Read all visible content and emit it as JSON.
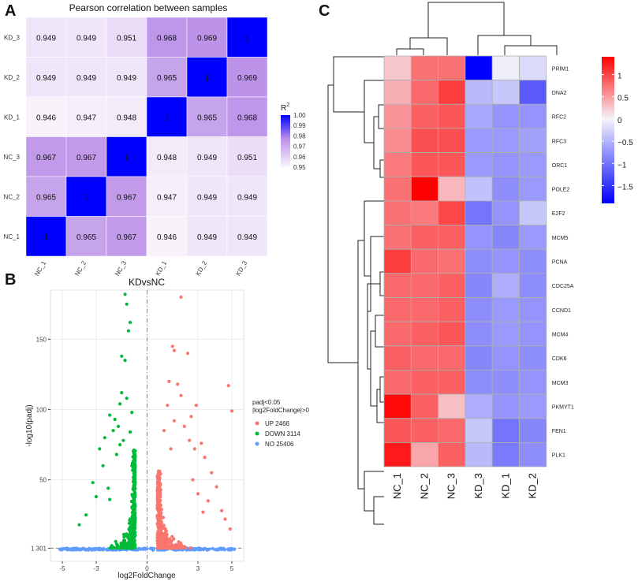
{
  "panels": {
    "a": "A",
    "b": "B",
    "c": "C"
  },
  "chart_data": [
    {
      "type": "heatmap",
      "title": "Pearson correlation between samples",
      "rows": [
        "KD_3",
        "KD_2",
        "KD_1",
        "NC_3",
        "NC_2",
        "NC_1"
      ],
      "cols": [
        "NC_1",
        "NC_2",
        "NC_3",
        "KD_1",
        "KD_2",
        "KD_3"
      ],
      "values": [
        [
          "0.949",
          "0.949",
          "0.951",
          "0.968",
          "0.969",
          "1"
        ],
        [
          "0.949",
          "0.949",
          "0.949",
          "0.965",
          "1",
          "0.969"
        ],
        [
          "0.946",
          "0.947",
          "0.948",
          "1",
          "0.965",
          "0.968"
        ],
        [
          "0.967",
          "0.967",
          "1",
          "0.948",
          "0.949",
          "0.951"
        ],
        [
          "0.965",
          "1",
          "0.967",
          "0.947",
          "0.949",
          "0.949"
        ],
        [
          "1",
          "0.965",
          "0.967",
          "0.946",
          "0.949",
          "0.949"
        ]
      ],
      "legend_title": "R",
      "legend_title_sup": "2",
      "legend_ticks": [
        "1.00",
        "0.99",
        "0.98",
        "0.97",
        "0.96",
        "0.95"
      ],
      "colors": {
        "low": "#fbf6fc",
        "mid": "#b98fe8",
        "high": "#0000ff"
      }
    },
    {
      "type": "scatter",
      "title": "KDvsNC",
      "xlabel": "log2FoldChange",
      "ylabel": "-log10(padj)",
      "x_ticks": [
        "-5",
        "-3",
        "0",
        "3",
        "5"
      ],
      "y_ticks": [
        "1.301",
        "50",
        "100",
        "150"
      ],
      "xlim": [
        -5.7,
        5.7
      ],
      "ylim": [
        -8,
        185
      ],
      "threshold_y": 1.301,
      "legend_title_1": "padj<0.05",
      "legend_title_2": "|log2FoldChange|>0",
      "series": [
        {
          "name": "UP 2466",
          "color": "#f8766d"
        },
        {
          "name": "DOWN 3114",
          "color": "#00ba38"
        },
        {
          "name": "NO 25406",
          "color": "#619cff"
        }
      ]
    },
    {
      "type": "heatmap",
      "cols": [
        "NC_1",
        "NC_2",
        "NC_3",
        "KD_3",
        "KD_1",
        "KD_2"
      ],
      "rows": [
        "PRIM1",
        "DNA2",
        "RFC2",
        "RFC3",
        "ORC1",
        "POLE2",
        "E2F2",
        "MCM5",
        "PCNA",
        "CDC25A",
        "CCND1",
        "MCM4",
        "CDK6",
        "MCM3",
        "PKMYT1",
        "FEN1",
        "PLK1"
      ],
      "values": [
        [
          0.25,
          0.75,
          0.75,
          -1.9,
          -0.05,
          -0.2
        ],
        [
          0.4,
          0.8,
          1.05,
          -0.45,
          -0.35,
          -1.2
        ],
        [
          0.55,
          0.85,
          0.9,
          -0.6,
          -0.75,
          -0.75
        ],
        [
          0.6,
          0.95,
          0.95,
          -0.7,
          -0.7,
          -0.65
        ],
        [
          0.7,
          0.9,
          0.9,
          -0.7,
          -0.75,
          -0.7
        ],
        [
          0.75,
          1.4,
          0.35,
          -0.4,
          -0.8,
          -0.7
        ],
        [
          0.75,
          0.7,
          1.0,
          -1.0,
          -0.75,
          -0.35
        ],
        [
          0.75,
          0.85,
          0.85,
          -0.75,
          -0.85,
          -0.7
        ],
        [
          1.05,
          0.8,
          0.75,
          -0.8,
          -0.75,
          -0.8
        ],
        [
          0.8,
          0.8,
          0.85,
          -0.85,
          -0.55,
          -0.8
        ],
        [
          0.8,
          0.8,
          0.85,
          -0.8,
          -0.7,
          -0.75
        ],
        [
          0.8,
          0.85,
          0.9,
          -0.8,
          -0.7,
          -0.75
        ],
        [
          0.85,
          0.8,
          0.8,
          -0.85,
          -0.75,
          -0.8
        ],
        [
          0.8,
          0.85,
          0.85,
          -0.8,
          -0.8,
          -0.75
        ],
        [
          1.35,
          0.85,
          0.3,
          -0.55,
          -0.75,
          -0.7
        ],
        [
          0.9,
          0.85,
          0.8,
          -0.35,
          -1.0,
          -0.85
        ],
        [
          1.25,
          0.45,
          0.85,
          -0.45,
          -0.95,
          -0.8
        ]
      ],
      "scale_ticks": [
        "1",
        "0.5",
        "0",
        "−0.5",
        "−1",
        "−1.5"
      ],
      "vmin": -1.9,
      "vmax": 1.4,
      "colors": {
        "low": "#0000ff",
        "mid": "#f4f4fa",
        "high": "#ff0000"
      }
    }
  ]
}
